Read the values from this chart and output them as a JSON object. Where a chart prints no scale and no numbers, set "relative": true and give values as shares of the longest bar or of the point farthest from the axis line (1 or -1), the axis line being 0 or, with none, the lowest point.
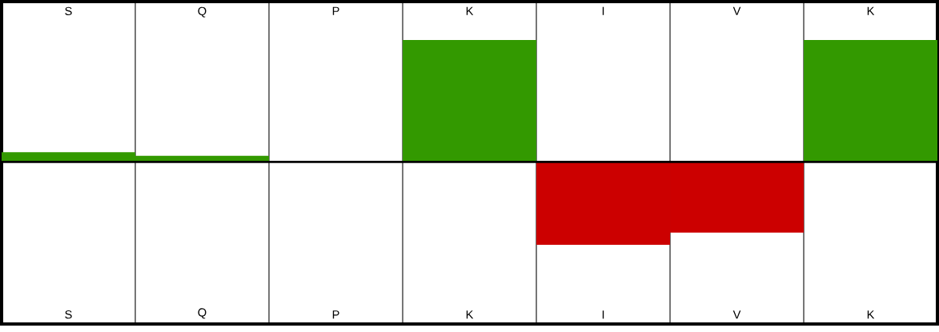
{
  "chart_data": {
    "type": "bar",
    "relative": true,
    "categories": [
      "S",
      "Q",
      "P",
      "K",
      "I",
      "V",
      "K"
    ],
    "values": [
      0.08,
      0.05,
      0,
      1,
      -0.68,
      -0.58,
      1
    ],
    "colors": [
      "#339900",
      "#339900",
      "#339900",
      "#339900",
      "#cc0000",
      "#cc0000",
      "#339900"
    ],
    "grid": "x"
  }
}
